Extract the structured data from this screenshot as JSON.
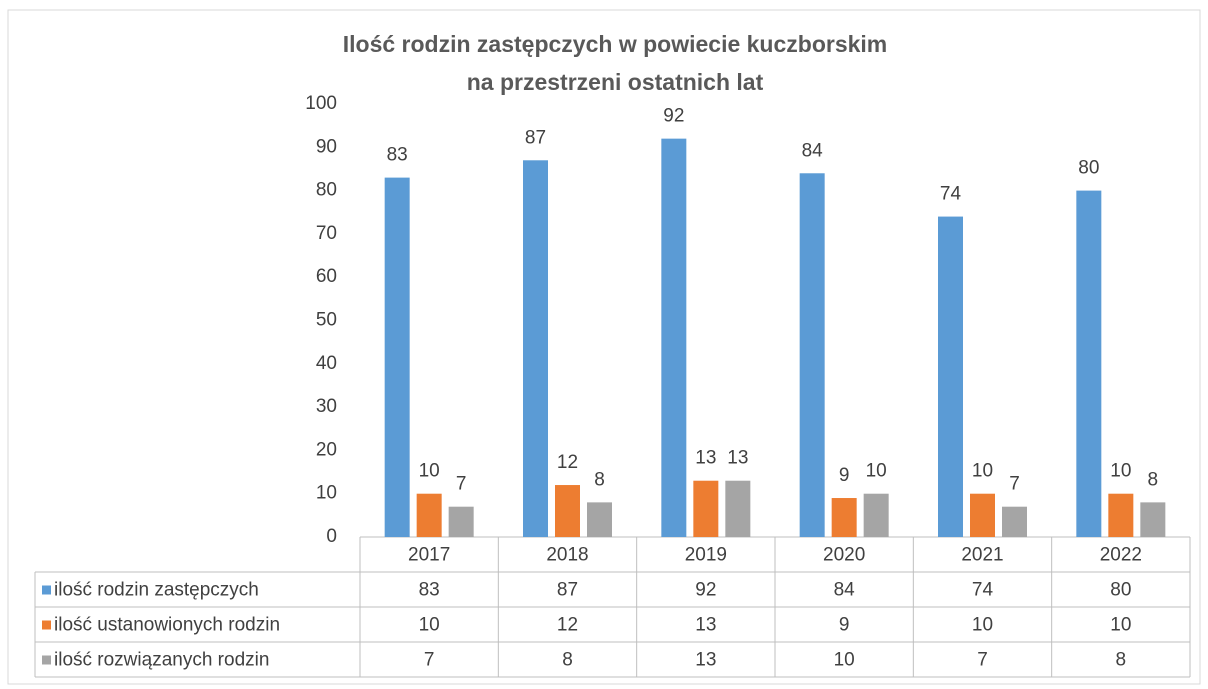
{
  "chart_data": {
    "type": "bar",
    "title": [
      "Ilość rodzin zastępczych w powiecie kuczborskim",
      "na przestrzeni ostatnich lat"
    ],
    "categories": [
      "2017",
      "2018",
      "2019",
      "2020",
      "2021",
      "2022"
    ],
    "series": [
      {
        "name": "ilość rodzin zastępczych",
        "color": "#5b9bd5",
        "values": [
          83,
          87,
          92,
          84,
          74,
          80
        ]
      },
      {
        "name": "ilość ustanowionych rodzin",
        "color": "#ed7d31",
        "values": [
          10,
          12,
          13,
          9,
          10,
          10
        ]
      },
      {
        "name": "ilość rozwiązanych rodzin",
        "color": "#a5a5a5",
        "values": [
          7,
          8,
          13,
          10,
          7,
          8
        ]
      }
    ],
    "ylim": [
      0,
      100
    ],
    "yticks": [
      0,
      10,
      20,
      30,
      40,
      50,
      60,
      70,
      80,
      90,
      100
    ],
    "grid": false
  }
}
